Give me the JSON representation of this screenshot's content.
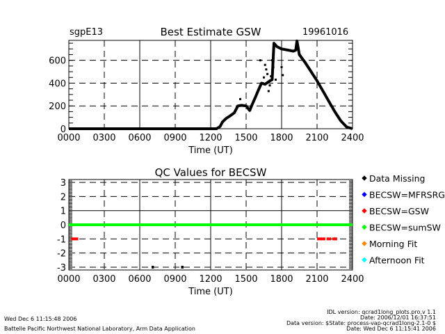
{
  "chart_data": [
    {
      "type": "line",
      "title": "Best Estimate GSW",
      "site": "sgpE13",
      "date": "19961016",
      "xlabel": "Time (UT)",
      "ylabel": "",
      "xlim": [
        0,
        24
      ],
      "ylim": [
        0,
        775
      ],
      "xticks": [
        "0000",
        "0300",
        "0600",
        "0900",
        "1200",
        "1500",
        "1800",
        "2100",
        "2400"
      ],
      "yticks": [
        "0",
        "200",
        "400",
        "600"
      ],
      "grid": true,
      "x_hours": [
        0,
        12.5,
        12.8,
        13.0,
        13.3,
        13.6,
        14.0,
        14.3,
        14.6,
        15.0,
        15.3,
        15.5,
        15.8,
        16.0,
        16.3,
        16.6,
        17.0,
        17.2,
        17.35,
        17.6,
        18.0,
        18.5,
        19.0,
        19.2,
        19.3,
        19.5,
        20.0,
        20.5,
        21.0,
        21.5,
        22.0,
        22.5,
        23.0,
        23.5,
        24.0
      ],
      "values": [
        0,
        0,
        20,
        60,
        90,
        110,
        140,
        200,
        205,
        200,
        160,
        210,
        280,
        330,
        400,
        390,
        420,
        430,
        750,
        720,
        700,
        690,
        680,
        690,
        770,
        650,
        580,
        500,
        420,
        330,
        240,
        150,
        70,
        15,
        0
      ],
      "scatter_x": [
        14.5,
        16.2,
        16.5,
        16.6,
        16.7,
        16.8,
        17.0,
        17.1,
        17.2,
        17.3,
        18.0,
        18.1,
        16.4,
        16.9,
        17.5
      ],
      "scatter_y": [
        260,
        600,
        450,
        560,
        520,
        480,
        380,
        460,
        600,
        540,
        540,
        470,
        400,
        330,
        430
      ]
    },
    {
      "type": "line",
      "title": "QC Values for BECSW",
      "xlabel": "Time (UT)",
      "xlim": [
        0,
        24
      ],
      "ylim": [
        -3.2,
        3.2
      ],
      "xticks": [
        "0000",
        "0300",
        "0600",
        "0900",
        "1200",
        "1500",
        "1800",
        "2100",
        "2400"
      ],
      "yticks": [
        "3",
        "2",
        "1",
        "0",
        "-1",
        "-2",
        "-3"
      ],
      "grid": true,
      "series": [
        {
          "name": "BECSW=sumSW",
          "color": "#00ff00",
          "segments": [
            [
              0,
              24,
              0
            ]
          ]
        },
        {
          "name": "BECSW=GSW",
          "color": "#ff0000",
          "segments": [
            [
              0.2,
              0.8,
              -1
            ],
            [
              21.0,
              21.7,
              -1
            ],
            [
              21.8,
              22.2,
              -1
            ],
            [
              22.3,
              22.7,
              -1
            ]
          ]
        },
        {
          "name": "Data Missing",
          "color": "#000000",
          "segments": [
            [
              7.0,
              7.2,
              -3
            ],
            [
              9.5,
              9.7,
              -3
            ]
          ]
        }
      ],
      "legend": [
        {
          "label": "Data Missing",
          "color": "#000000"
        },
        {
          "label": "BECSW=MFRSRG",
          "color": "#0000ff"
        },
        {
          "label": "BECSW=GSW",
          "color": "#ff0000"
        },
        {
          "label": "BECSW=sumSW",
          "color": "#00ff00"
        },
        {
          "label": "Morning Fit",
          "color": "#ff8800"
        },
        {
          "label": "Afternoon Fit",
          "color": "#00ffff"
        }
      ],
      "legend_position": "right"
    }
  ],
  "footer": {
    "left_date": "Wed Dec  6 11:15:48 2006",
    "left_org": "Battelle Pacific Northwest National Laboratory, Arm Data Application",
    "right_lines": [
      "IDL version: qcrad1long_plots.pro,v 1.1",
      "Date: 2006/12/01 16:37:51",
      "Data version: $State: process-vap-qcrad1long-2.1-0 $",
      "Date: Wed Dec  6 11:15:41 2006"
    ]
  }
}
